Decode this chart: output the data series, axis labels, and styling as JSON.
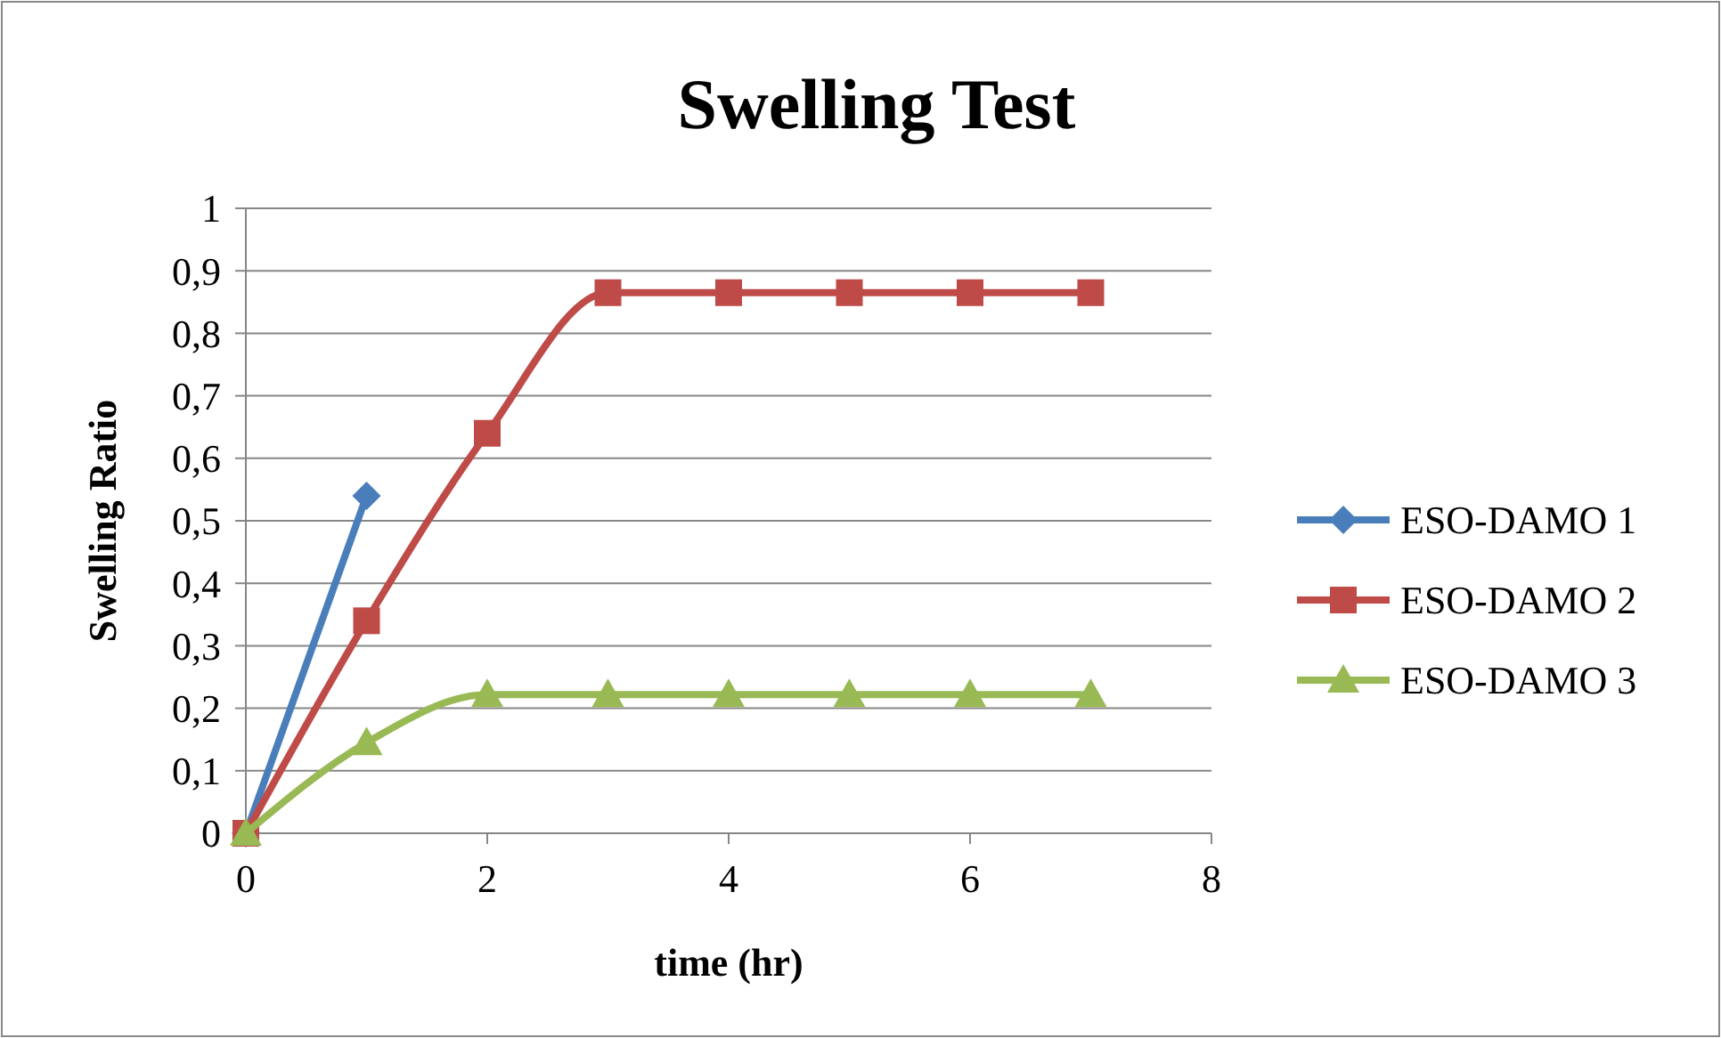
{
  "chart_data": {
    "type": "line",
    "title": "Swelling Test",
    "xlabel": "time (hr)",
    "ylabel": "Swelling Ratio",
    "xlim": [
      0,
      8
    ],
    "xticks": [
      0,
      2,
      4,
      6,
      8
    ],
    "ylim": [
      0,
      1
    ],
    "yticks": [
      0,
      {
        "value": 0.1,
        "label": "0,1"
      },
      {
        "value": 0.2,
        "label": "0,2"
      },
      {
        "value": 0.3,
        "label": "0,3"
      },
      {
        "value": 0.4,
        "label": "0,4"
      },
      {
        "value": 0.5,
        "label": "0,5"
      },
      {
        "value": 0.6,
        "label": "0,6"
      },
      {
        "value": 0.7,
        "label": "0,7"
      },
      {
        "value": 0.8,
        "label": "0,8"
      },
      {
        "value": 0.9,
        "label": "0,9"
      },
      1
    ],
    "grid": "y",
    "legend": "right",
    "series": [
      {
        "name": "ESO-DAMO 1",
        "color": "#4a7ebb",
        "marker": "diamond",
        "x": [
          0,
          1
        ],
        "values": [
          0,
          0.54
        ]
      },
      {
        "name": "ESO-DAMO 2",
        "color": "#be4b48",
        "marker": "square",
        "x": [
          0,
          1,
          2,
          3,
          4,
          5,
          6,
          7
        ],
        "values": [
          0,
          0.34,
          0.64,
          0.865,
          0.865,
          0.865,
          0.865,
          0.865
        ]
      },
      {
        "name": "ESO-DAMO 3",
        "color": "#98b954",
        "marker": "triangle",
        "x": [
          0,
          1,
          2,
          3,
          4,
          5,
          6,
          7
        ],
        "values": [
          0,
          0.145,
          0.222,
          0.222,
          0.222,
          0.222,
          0.222,
          0.222
        ]
      }
    ]
  }
}
